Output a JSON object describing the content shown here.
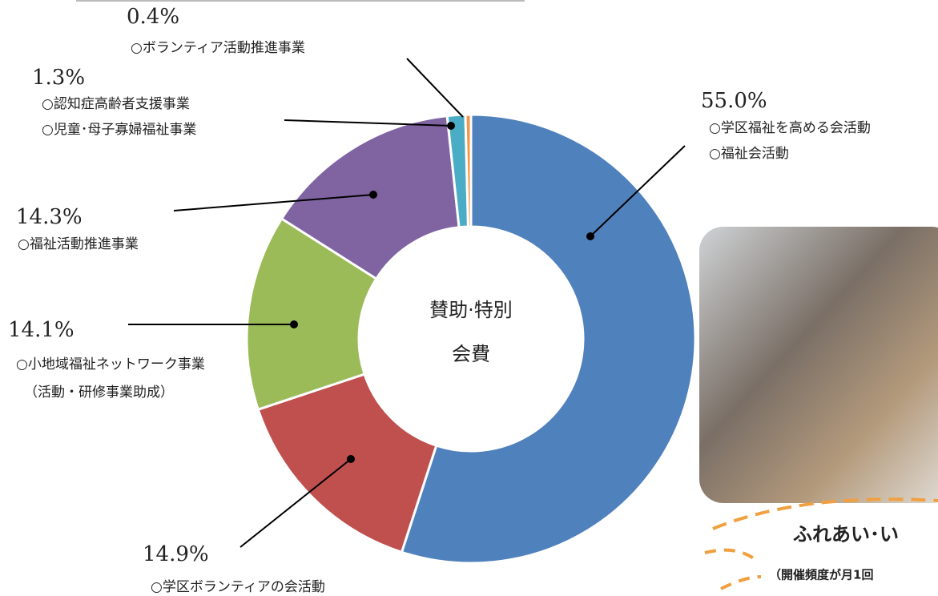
{
  "chart_data": {
    "type": "donut",
    "center_label": [
      "賛助·特別",
      "会費"
    ],
    "categories": [
      [
        "○学区福祉を高める会活動",
        "○福祉会活動"
      ],
      [
        "○学区ボランティアの会活動"
      ],
      [
        "○小地域福祉ネットワーク事業",
        "（活動・研修事業助成）"
      ],
      [
        "○福祉活動推進事業"
      ],
      [
        "○認知症高齢者支援事業",
        "○児童･母子寡婦福祉事業"
      ],
      [
        "○ボランティア活動推進事業"
      ]
    ],
    "values": [
      55.0,
      14.9,
      14.1,
      14.3,
      1.3,
      0.4
    ],
    "value_labels": [
      "55.0%",
      "14.9%",
      "14.1%",
      "14.3%",
      "1.3%",
      "0.4%"
    ],
    "colors": [
      "#4f81bd",
      "#c0504d",
      "#9bbb59",
      "#8064a2",
      "#4bacc6",
      "#f79646"
    ]
  },
  "photo_caption": {
    "title": "ふれあい･い",
    "subtitle": "（開催頻度が月1回"
  }
}
